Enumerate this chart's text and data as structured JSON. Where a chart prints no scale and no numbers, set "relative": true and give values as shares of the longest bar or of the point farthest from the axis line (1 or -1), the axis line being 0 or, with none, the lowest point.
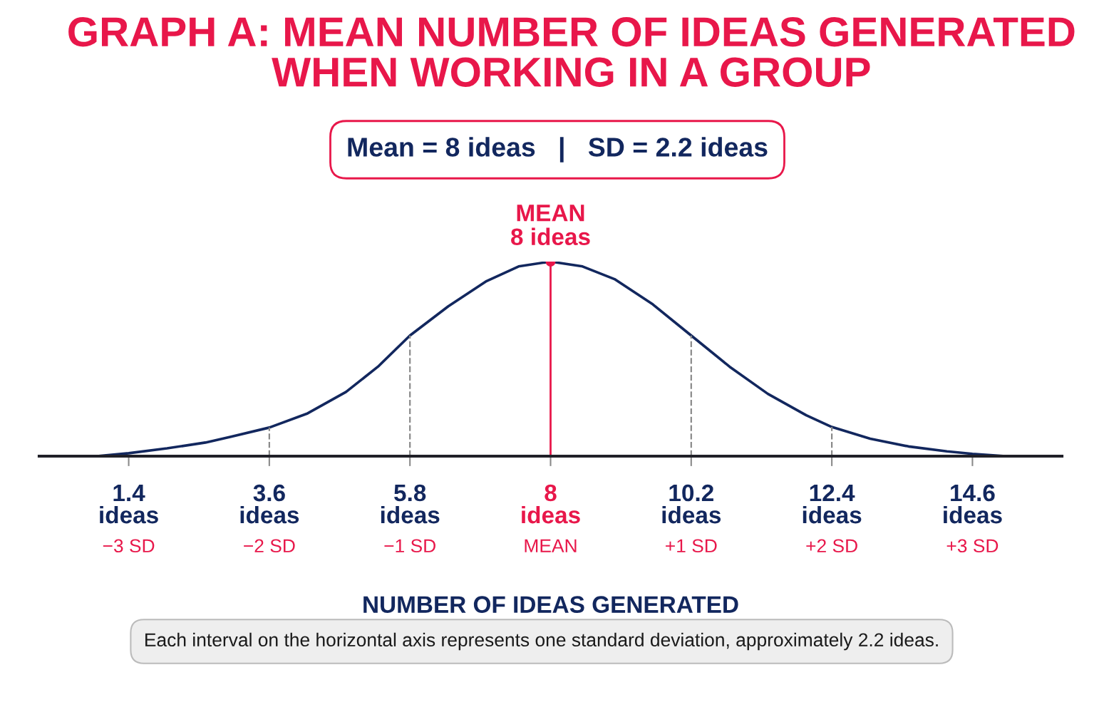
{
  "chart_data": {
    "type": "line",
    "title": "GRAPH A: MEAN NUMBER OF IDEAS GENERATED\nWHEN WORKING IN A GROUP",
    "subtitle": "Mean = 8 ideas   |   SD = 2.2 ideas",
    "xlabel": "NUMBER OF IDEAS GENERATED",
    "relative": true,
    "x": [
      0.9,
      1.4,
      2.0,
      2.6,
      3.0,
      3.6,
      4.2,
      4.8,
      5.3,
      5.8,
      6.4,
      7.0,
      7.5,
      8.0,
      8.5,
      9.0,
      9.6,
      10.2,
      10.8,
      11.4,
      12.0,
      12.4,
      13.0,
      13.6,
      14.2,
      14.6,
      15.1
    ],
    "series": [
      {
        "color": "#12275e",
        "values": [
          0.0,
          0.015,
          0.04,
          0.07,
          0.1,
          0.147,
          0.22,
          0.33,
          0.46,
          0.62,
          0.77,
          0.9,
          0.975,
          1.0,
          0.975,
          0.91,
          0.78,
          0.62,
          0.46,
          0.32,
          0.21,
          0.15,
          0.09,
          0.05,
          0.025,
          0.012,
          0.0
        ]
      }
    ],
    "xlim": [
      0,
      16
    ],
    "xticks": [
      {
        "value": 1.4,
        "label": "1.4\nideas"
      },
      {
        "value": 3.6,
        "label": "3.6\nideas"
      },
      {
        "value": 5.8,
        "label": "5.8\nideas"
      },
      {
        "value": 8,
        "label": "8\nideas"
      },
      {
        "value": 10.2,
        "label": "10.2\nideas"
      },
      {
        "value": 12.4,
        "label": "12.4\nideas"
      },
      {
        "value": 14.6,
        "label": "14.6\nideas"
      }
    ],
    "ref_lines": [
      {
        "axis": "x",
        "value": 8,
        "label": "MEAN\n8 ideas",
        "color": "#e8174a",
        "line_style": "solid"
      },
      {
        "axis": "x",
        "value": 3.6,
        "color": "#8a8a8a",
        "line_style": "dashed"
      },
      {
        "axis": "x",
        "value": 5.8,
        "color": "#8a8a8a",
        "line_style": "dashed"
      },
      {
        "axis": "x",
        "value": 10.2,
        "color": "#8a8a8a",
        "line_style": "dashed"
      },
      {
        "axis": "x",
        "value": 12.4,
        "color": "#8a8a8a",
        "line_style": "dashed"
      }
    ],
    "annotations": [
      "−3 SD",
      "−2 SD",
      "−1 SD",
      "MEAN",
      "+1 SD",
      "+2 SD",
      "+3 SD",
      "Each interval on the horizontal axis represents one standard deviation, approximately 2.2 ideas."
    ],
    "grid": false,
    "legend": false,
    "marker": "none",
    "line_style": "solid"
  }
}
